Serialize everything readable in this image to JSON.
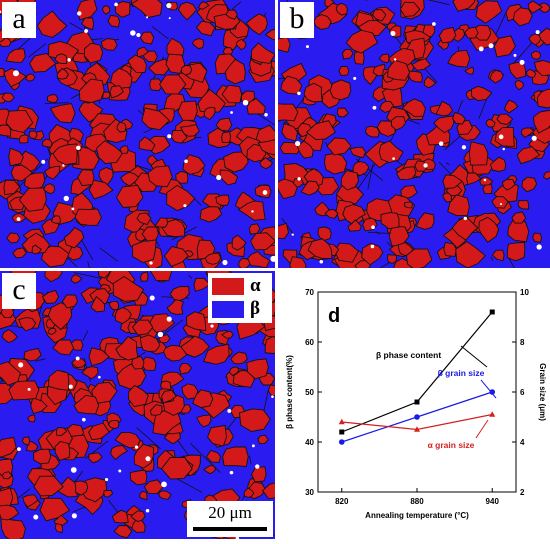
{
  "panels": {
    "a": {
      "label": "a"
    },
    "b": {
      "label": "b"
    },
    "c": {
      "label": "c"
    }
  },
  "legend": {
    "alpha_label": "α",
    "beta_label": "β",
    "alpha_color": "#d4191a",
    "beta_color": "#2a1cf0"
  },
  "scale_bar": {
    "text": "20 μm"
  },
  "chart_data": {
    "panel_label": "d",
    "type": "line",
    "x": [
      820,
      880,
      940
    ],
    "xlabel": "Annealing temperature (°C)",
    "ylabel_left": "β phase content(%)",
    "ylabel_right": "Grain size (μm)",
    "ylim_left": [
      30,
      70
    ],
    "ylim_right": [
      2,
      10
    ],
    "yticks_left": [
      30,
      40,
      50,
      60,
      70
    ],
    "yticks_right": [
      2,
      4,
      6,
      8,
      10
    ],
    "series": [
      {
        "name": "β phase content",
        "axis": "left",
        "values": [
          42,
          48,
          66
        ],
        "color": "#000000",
        "marker": "square"
      },
      {
        "name": "β grain size",
        "axis": "right",
        "values": [
          4.0,
          5.0,
          6.0
        ],
        "color": "#1a1ae6",
        "marker": "circle"
      },
      {
        "name": "α grain size",
        "axis": "right",
        "values": [
          4.8,
          4.5,
          5.1
        ],
        "color": "#d42020",
        "marker": "triangle"
      }
    ],
    "grid": false
  }
}
